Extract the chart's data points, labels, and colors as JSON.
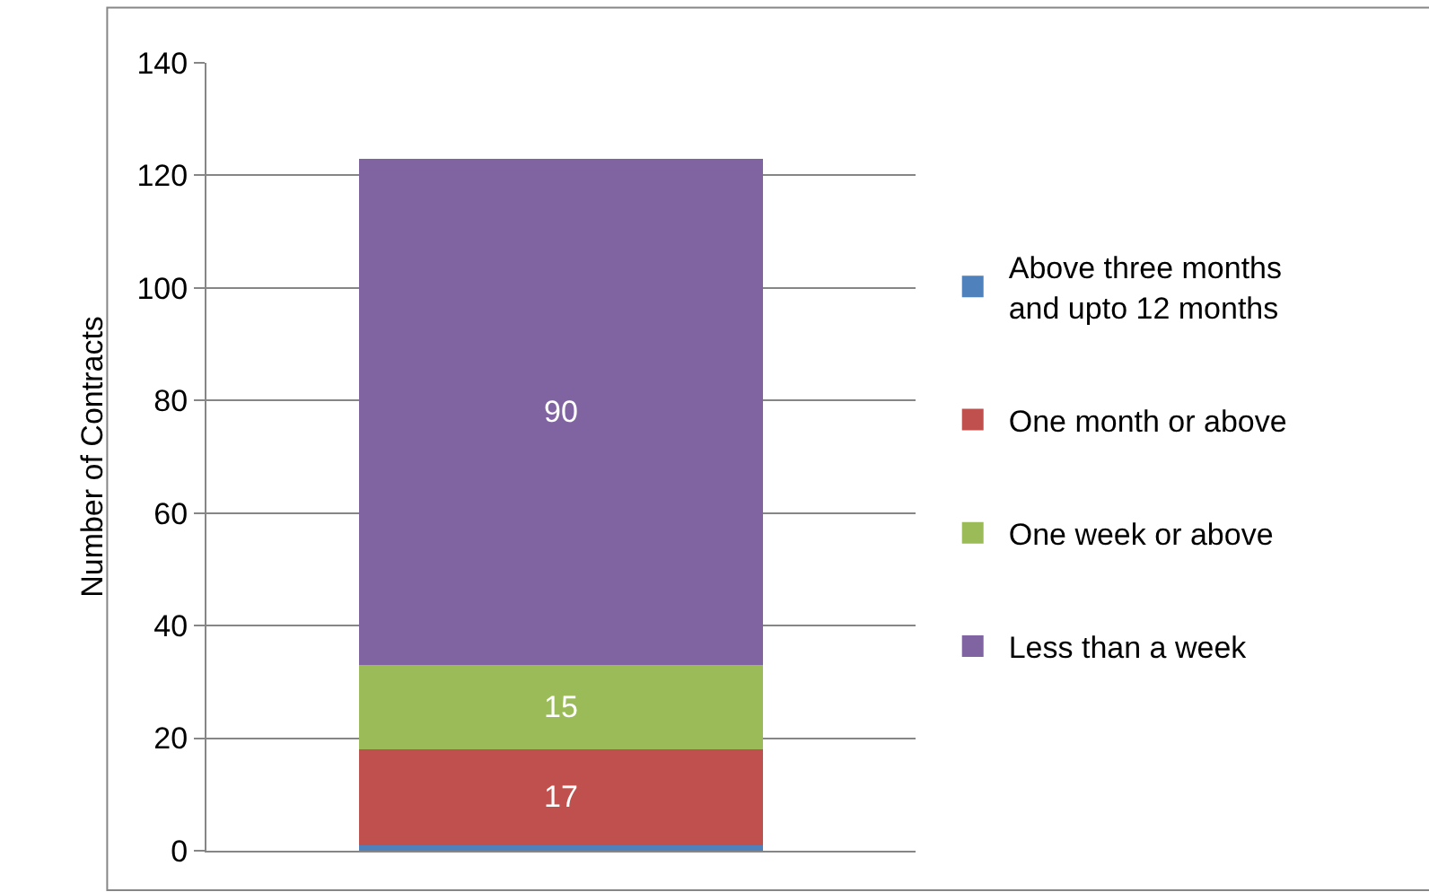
{
  "chart_data": {
    "type": "bar",
    "stacked": true,
    "ylabel": "Number of Contracts",
    "categories": [
      null
    ],
    "series": [
      {
        "name": "Above three months and upto 12 months",
        "color": "#4f81bd",
        "values": [
          1
        ],
        "value_labels": [
          null
        ]
      },
      {
        "name": "One month or above",
        "color": "#c0504d",
        "values": [
          17
        ],
        "value_labels": [
          "17"
        ]
      },
      {
        "name": "One week or above",
        "color": "#9bbb59",
        "values": [
          15
        ],
        "value_labels": [
          "15"
        ]
      },
      {
        "name": "Less than a week",
        "color": "#8064a2",
        "values": [
          90
        ],
        "value_labels": [
          "90"
        ]
      }
    ],
    "ylim": [
      0,
      140
    ],
    "yticks": [
      0,
      20,
      40,
      60,
      80,
      100,
      120,
      140
    ],
    "grid": "y",
    "legend": "right"
  }
}
